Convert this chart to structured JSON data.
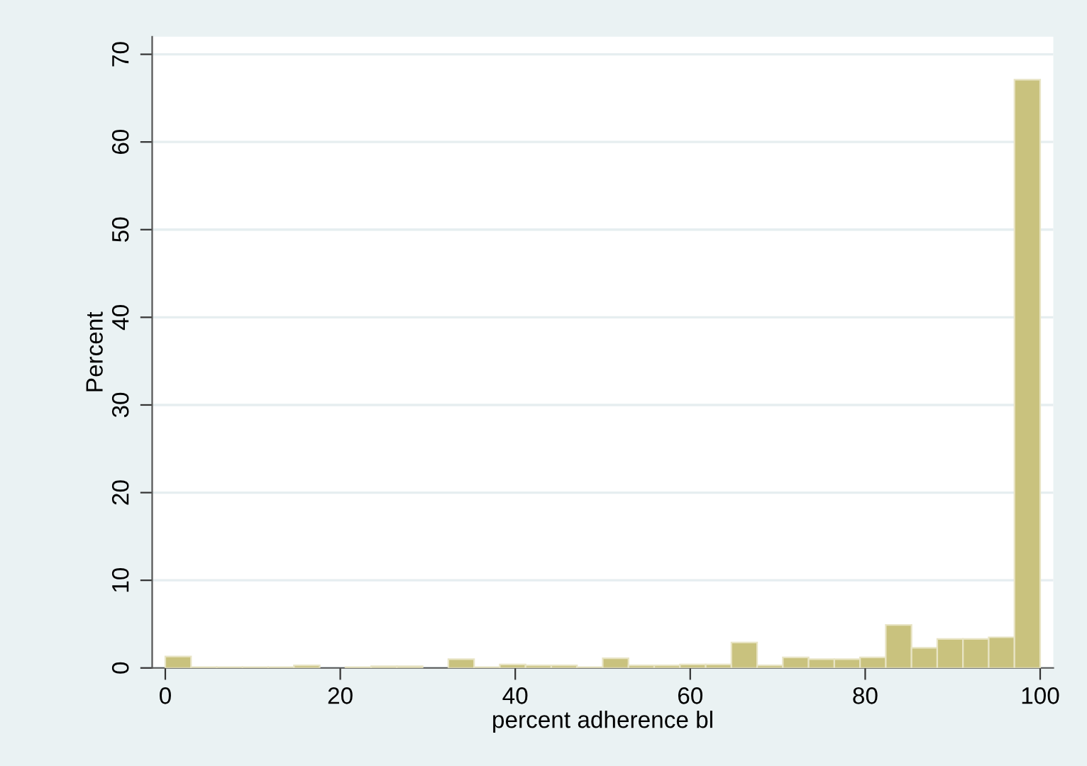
{
  "chart_data": {
    "type": "histogram",
    "xlabel": "percent adherence bl",
    "ylabel": "Percent",
    "bins": [
      0,
      2.941,
      5.882,
      8.824,
      11.765,
      14.706,
      17.647,
      20.588,
      23.529,
      26.471,
      29.412,
      32.353,
      35.294,
      38.235,
      41.176,
      44.118,
      47.059,
      50.0,
      52.941,
      55.882,
      58.824,
      61.765,
      64.706,
      67.647,
      70.588,
      73.529,
      76.471,
      79.412,
      82.353,
      85.294,
      88.235,
      91.176,
      94.118,
      97.059,
      100
    ],
    "values": [
      1.3,
      0.1,
      0.1,
      0.1,
      0.1,
      0.3,
      0,
      0.1,
      0.2,
      0.2,
      0,
      1.0,
      0.1,
      0.4,
      0.3,
      0.3,
      0.1,
      1.1,
      0.3,
      0.3,
      0.4,
      0.4,
      2.9,
      0.3,
      1.2,
      1.0,
      1.0,
      1.2,
      4.9,
      2.3,
      3.3,
      3.3,
      3.5,
      67.1
    ],
    "color": "#c9c27e",
    "xlim": [
      -1.5,
      101.5
    ],
    "ylim": [
      0,
      72
    ],
    "xticks": [
      0,
      20,
      40,
      60,
      80,
      100
    ],
    "yticks": [
      0,
      10,
      20,
      30,
      40,
      50,
      60,
      70
    ],
    "grid": "y",
    "legend": false
  }
}
